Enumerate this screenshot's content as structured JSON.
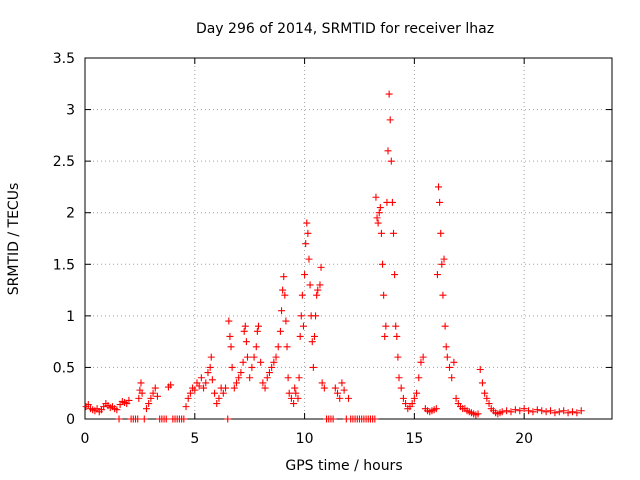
{
  "chart_data": {
    "type": "scatter",
    "title": "Day 296 of 2014, SRMTID for receiver lhaz",
    "xlabel": "GPS time / hours",
    "ylabel": "SRMTID / TECUs",
    "xlim": [
      0,
      24
    ],
    "ylim": [
      0,
      3.5
    ],
    "grid": true,
    "marker": "+",
    "color": "#ff0000",
    "xticks": [
      {
        "value": 0,
        "label": "0"
      },
      {
        "value": 5,
        "label": "5"
      },
      {
        "value": 10,
        "label": "10"
      },
      {
        "value": 15,
        "label": "15"
      },
      {
        "value": 20,
        "label": "20"
      }
    ],
    "yticks": [
      {
        "value": 0,
        "label": "0"
      },
      {
        "value": 0.5,
        "label": "0.5"
      },
      {
        "value": 1,
        "label": "1"
      },
      {
        "value": 1.5,
        "label": "1.5"
      },
      {
        "value": 2,
        "label": "2"
      },
      {
        "value": 2.5,
        "label": "2.5"
      },
      {
        "value": 3,
        "label": "3"
      },
      {
        "value": 3.5,
        "label": "3.5"
      }
    ],
    "series": [
      {
        "name": "SRMTID",
        "points": [
          [
            0.05,
            0.12
          ],
          [
            0.15,
            0.14
          ],
          [
            0.25,
            0.1
          ],
          [
            0.35,
            0.09
          ],
          [
            0.45,
            0.08
          ],
          [
            0.55,
            0.1
          ],
          [
            0.65,
            0.07
          ],
          [
            0.75,
            0.09
          ],
          [
            0.85,
            0.12
          ],
          [
            0.95,
            0.15
          ],
          [
            1.05,
            0.13
          ],
          [
            1.15,
            0.11
          ],
          [
            1.25,
            0.12
          ],
          [
            1.35,
            0.1
          ],
          [
            1.45,
            0.09
          ],
          [
            1.55,
            0.0
          ],
          [
            1.6,
            0.14
          ],
          [
            1.7,
            0.17
          ],
          [
            1.8,
            0.16
          ],
          [
            1.9,
            0.15
          ],
          [
            2.0,
            0.18
          ],
          [
            2.1,
            0.0
          ],
          [
            2.2,
            0.0
          ],
          [
            2.3,
            0.0
          ],
          [
            2.4,
            0.0
          ],
          [
            2.45,
            0.2
          ],
          [
            2.5,
            0.28
          ],
          [
            2.55,
            0.35
          ],
          [
            2.6,
            0.25
          ],
          [
            2.7,
            0.0
          ],
          [
            2.8,
            0.1
          ],
          [
            2.9,
            0.15
          ],
          [
            3.0,
            0.2
          ],
          [
            3.1,
            0.25
          ],
          [
            3.2,
            0.3
          ],
          [
            3.3,
            0.22
          ],
          [
            3.4,
            0.0
          ],
          [
            3.5,
            0.0
          ],
          [
            3.6,
            0.0
          ],
          [
            3.7,
            0.0
          ],
          [
            3.8,
            0.31
          ],
          [
            3.9,
            0.33
          ],
          [
            4.0,
            0.0
          ],
          [
            4.1,
            0.0
          ],
          [
            4.2,
            0.0
          ],
          [
            4.3,
            0.0
          ],
          [
            4.4,
            0.0
          ],
          [
            4.5,
            0.0
          ],
          [
            4.6,
            0.12
          ],
          [
            4.7,
            0.2
          ],
          [
            4.8,
            0.25
          ],
          [
            4.9,
            0.3
          ],
          [
            5.0,
            0.28
          ],
          [
            5.1,
            0.35
          ],
          [
            5.2,
            0.32
          ],
          [
            5.3,
            0.4
          ],
          [
            5.4,
            0.3
          ],
          [
            5.5,
            0.35
          ],
          [
            5.6,
            0.45
          ],
          [
            5.7,
            0.5
          ],
          [
            5.75,
            0.6
          ],
          [
            5.8,
            0.38
          ],
          [
            5.9,
            0.25
          ],
          [
            6.0,
            0.15
          ],
          [
            6.1,
            0.2
          ],
          [
            6.2,
            0.3
          ],
          [
            6.3,
            0.25
          ],
          [
            6.4,
            0.3
          ],
          [
            6.5,
            0.0
          ],
          [
            6.55,
            0.95
          ],
          [
            6.6,
            0.8
          ],
          [
            6.65,
            0.7
          ],
          [
            6.7,
            0.5
          ],
          [
            6.8,
            0.3
          ],
          [
            6.9,
            0.35
          ],
          [
            7.0,
            0.4
          ],
          [
            7.1,
            0.45
          ],
          [
            7.2,
            0.55
          ],
          [
            7.25,
            0.85
          ],
          [
            7.3,
            0.9
          ],
          [
            7.35,
            0.75
          ],
          [
            7.4,
            0.6
          ],
          [
            7.5,
            0.4
          ],
          [
            7.6,
            0.5
          ],
          [
            7.7,
            0.6
          ],
          [
            7.8,
            0.7
          ],
          [
            7.85,
            0.85
          ],
          [
            7.9,
            0.9
          ],
          [
            8.0,
            0.55
          ],
          [
            8.1,
            0.35
          ],
          [
            8.2,
            0.3
          ],
          [
            8.3,
            0.4
          ],
          [
            8.4,
            0.45
          ],
          [
            8.5,
            0.5
          ],
          [
            8.6,
            0.55
          ],
          [
            8.7,
            0.6
          ],
          [
            8.8,
            0.7
          ],
          [
            8.9,
            0.85
          ],
          [
            8.95,
            1.05
          ],
          [
            9.0,
            1.25
          ],
          [
            9.05,
            1.38
          ],
          [
            9.1,
            1.2
          ],
          [
            9.15,
            0.95
          ],
          [
            9.2,
            0.7
          ],
          [
            9.25,
            0.4
          ],
          [
            9.3,
            0.25
          ],
          [
            9.4,
            0.2
          ],
          [
            9.5,
            0.15
          ],
          [
            9.55,
            0.3
          ],
          [
            9.6,
            0.25
          ],
          [
            9.7,
            0.2
          ],
          [
            9.75,
            0.4
          ],
          [
            9.8,
            0.8
          ],
          [
            9.85,
            1.0
          ],
          [
            9.9,
            1.2
          ],
          [
            9.95,
            0.9
          ],
          [
            10.0,
            1.4
          ],
          [
            10.05,
            1.7
          ],
          [
            10.1,
            1.9
          ],
          [
            10.15,
            1.8
          ],
          [
            10.2,
            1.55
          ],
          [
            10.25,
            1.3
          ],
          [
            10.3,
            1.0
          ],
          [
            10.35,
            0.75
          ],
          [
            10.4,
            0.5
          ],
          [
            10.45,
            0.8
          ],
          [
            10.5,
            1.0
          ],
          [
            10.55,
            1.2
          ],
          [
            10.6,
            1.25
          ],
          [
            10.7,
            1.3
          ],
          [
            10.75,
            1.47
          ],
          [
            10.8,
            0.35
          ],
          [
            10.9,
            0.3
          ],
          [
            11.0,
            0.0
          ],
          [
            11.1,
            0.0
          ],
          [
            11.2,
            0.0
          ],
          [
            11.3,
            0.0
          ],
          [
            11.4,
            0.3
          ],
          [
            11.5,
            0.25
          ],
          [
            11.6,
            0.2
          ],
          [
            11.7,
            0.35
          ],
          [
            11.8,
            0.28
          ],
          [
            11.9,
            0.0
          ],
          [
            12.0,
            0.2
          ],
          [
            12.1,
            0.0
          ],
          [
            12.2,
            0.0
          ],
          [
            12.3,
            0.0
          ],
          [
            12.4,
            0.0
          ],
          [
            12.5,
            0.0
          ],
          [
            12.6,
            0.0
          ],
          [
            12.7,
            0.0
          ],
          [
            12.8,
            0.0
          ],
          [
            12.9,
            0.0
          ],
          [
            13.0,
            0.0
          ],
          [
            13.1,
            0.0
          ],
          [
            13.2,
            0.0
          ],
          [
            13.25,
            2.15
          ],
          [
            13.3,
            1.95
          ],
          [
            13.35,
            1.9
          ],
          [
            13.4,
            2.0
          ],
          [
            13.45,
            2.05
          ],
          [
            13.5,
            1.8
          ],
          [
            13.55,
            1.5
          ],
          [
            13.6,
            1.2
          ],
          [
            13.65,
            0.8
          ],
          [
            13.7,
            0.9
          ],
          [
            13.75,
            2.1
          ],
          [
            13.8,
            2.6
          ],
          [
            13.85,
            3.15
          ],
          [
            13.9,
            2.9
          ],
          [
            13.95,
            2.5
          ],
          [
            14.0,
            2.1
          ],
          [
            14.05,
            1.8
          ],
          [
            14.1,
            1.4
          ],
          [
            14.15,
            0.9
          ],
          [
            14.2,
            0.8
          ],
          [
            14.25,
            0.6
          ],
          [
            14.3,
            0.4
          ],
          [
            14.4,
            0.3
          ],
          [
            14.5,
            0.2
          ],
          [
            14.6,
            0.15
          ],
          [
            14.7,
            0.1
          ],
          [
            14.8,
            0.12
          ],
          [
            14.9,
            0.15
          ],
          [
            15.0,
            0.2
          ],
          [
            15.1,
            0.25
          ],
          [
            15.2,
            0.4
          ],
          [
            15.3,
            0.55
          ],
          [
            15.4,
            0.6
          ],
          [
            15.5,
            0.1
          ],
          [
            15.6,
            0.08
          ],
          [
            15.7,
            0.07
          ],
          [
            15.8,
            0.08
          ],
          [
            15.9,
            0.09
          ],
          [
            16.0,
            0.1
          ],
          [
            16.05,
            1.4
          ],
          [
            16.1,
            2.25
          ],
          [
            16.15,
            2.1
          ],
          [
            16.2,
            1.8
          ],
          [
            16.25,
            1.5
          ],
          [
            16.3,
            1.2
          ],
          [
            16.35,
            1.55
          ],
          [
            16.4,
            0.9
          ],
          [
            16.45,
            0.7
          ],
          [
            16.5,
            0.6
          ],
          [
            16.6,
            0.5
          ],
          [
            16.7,
            0.4
          ],
          [
            16.8,
            0.55
          ],
          [
            16.9,
            0.2
          ],
          [
            17.0,
            0.15
          ],
          [
            17.1,
            0.12
          ],
          [
            17.2,
            0.1
          ],
          [
            17.3,
            0.1
          ],
          [
            17.4,
            0.08
          ],
          [
            17.5,
            0.07
          ],
          [
            17.6,
            0.06
          ],
          [
            17.7,
            0.05
          ],
          [
            17.8,
            0.04
          ],
          [
            17.9,
            0.05
          ],
          [
            18.0,
            0.48
          ],
          [
            18.1,
            0.35
          ],
          [
            18.2,
            0.25
          ],
          [
            18.3,
            0.2
          ],
          [
            18.4,
            0.15
          ],
          [
            18.5,
            0.1
          ],
          [
            18.6,
            0.08
          ],
          [
            18.7,
            0.06
          ],
          [
            18.8,
            0.05
          ],
          [
            18.9,
            0.06
          ],
          [
            19.0,
            0.07
          ],
          [
            19.2,
            0.08
          ],
          [
            19.4,
            0.07
          ],
          [
            19.6,
            0.09
          ],
          [
            19.8,
            0.08
          ],
          [
            20.0,
            0.1
          ],
          [
            20.2,
            0.08
          ],
          [
            20.4,
            0.07
          ],
          [
            20.6,
            0.09
          ],
          [
            20.8,
            0.08
          ],
          [
            21.0,
            0.07
          ],
          [
            21.2,
            0.08
          ],
          [
            21.4,
            0.06
          ],
          [
            21.6,
            0.07
          ],
          [
            21.8,
            0.08
          ],
          [
            22.0,
            0.06
          ],
          [
            22.2,
            0.07
          ],
          [
            22.4,
            0.06
          ],
          [
            22.6,
            0.08
          ]
        ]
      }
    ]
  }
}
